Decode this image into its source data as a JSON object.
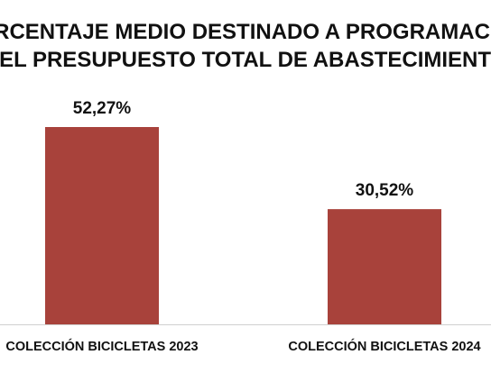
{
  "chart_data": {
    "type": "bar",
    "title": "PORCENTAJE MEDIO DESTINADO A PROGRAMACION DEL PRESUPUESTO TOTAL DE ABASTECIMIENTO",
    "title_lines": [
      "PORCENTAJE MEDIO DESTINADO A PROGRAMACION",
      "DEL PRESUPUESTO TOTAL DE ABASTECIMIENTO"
    ],
    "categories": [
      "COLECCIÓN BICICLETAS 2023",
      "COLECCIÓN BICICLETAS 2024"
    ],
    "values": [
      52.27,
      30.52
    ],
    "data_labels": [
      "52,27%",
      "30,52%"
    ],
    "xlabel": "",
    "ylabel": "",
    "ylim": [
      0,
      60
    ],
    "grid": false,
    "legend": "none",
    "bar_color": "#A8423B",
    "axis_color": "#D0D0D0"
  }
}
